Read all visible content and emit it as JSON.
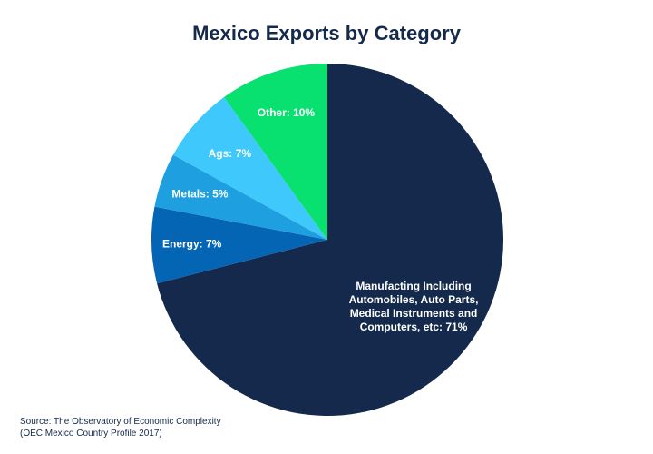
{
  "chart_data": {
    "type": "pie",
    "title": "Mexico Exports by Category",
    "slices": [
      {
        "label_lines": [
          "Manufacting Including",
          "Automobiles, Auto Parts,",
          "Medical Instruments and",
          "Computers, etc: 71%"
        ],
        "value": 71,
        "color": "#14294b"
      },
      {
        "label_lines": [
          "Energy: 7%"
        ],
        "value": 7,
        "color": "#0565b5"
      },
      {
        "label_lines": [
          "Metals: 5%"
        ],
        "value": 5,
        "color": "#1e9fe0"
      },
      {
        "label_lines": [
          "Ags: 7%"
        ],
        "value": 7,
        "color": "#3ec8fb"
      },
      {
        "label_lines": [
          "Other: 10%"
        ],
        "value": 10,
        "color": "#08e070"
      }
    ],
    "start_angle_deg": 0,
    "direction": "clockwise",
    "legend": "none"
  },
  "source": {
    "line1": "Source: The Observatory of Economic Complexity",
    "line2": "(OEC Mexico Country Profile 2017)"
  }
}
